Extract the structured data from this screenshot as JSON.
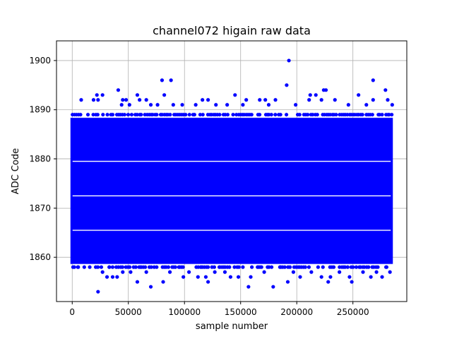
{
  "chart_data": {
    "type": "scatter",
    "title": "channel072 higain raw data",
    "xlabel": "sample number",
    "ylabel": "ADC Code",
    "xlim": [
      -14000,
      298000
    ],
    "ylim": [
      1851,
      1904
    ],
    "xticks": [
      0,
      50000,
      100000,
      150000,
      200000,
      250000
    ],
    "xtick_labels": [
      "0",
      "50000",
      "100000",
      "150000",
      "200000",
      "250000"
    ],
    "yticks": [
      1860,
      1870,
      1880,
      1890,
      1900
    ],
    "ytick_labels": [
      "1860",
      "1870",
      "1880",
      "1890",
      "1900"
    ],
    "grid": true,
    "marker_color": "#0000ff",
    "x_range": [
      0,
      284000
    ],
    "dense_band": [
      1859,
      1888
    ],
    "empty_levels": [
      1865.5,
      1872.5,
      1879.5
    ],
    "series": [
      {
        "points": [
          [
            193000,
            1900
          ],
          [
            80000,
            1896
          ],
          [
            88000,
            1896
          ],
          [
            268000,
            1896
          ],
          [
            191000,
            1895
          ],
          [
            41000,
            1894
          ],
          [
            224000,
            1894
          ],
          [
            226000,
            1894
          ],
          [
            279000,
            1894
          ],
          [
            145000,
            1893
          ],
          [
            58000,
            1893
          ],
          [
            82000,
            1893
          ],
          [
            212000,
            1893
          ],
          [
            217000,
            1893
          ],
          [
            255000,
            1893
          ],
          [
            22000,
            1893
          ],
          [
            27000,
            1893
          ],
          [
            8000,
            1892
          ],
          [
            19000,
            1892
          ],
          [
            23000,
            1892
          ],
          [
            45000,
            1892
          ],
          [
            48000,
            1892
          ],
          [
            60000,
            1892
          ],
          [
            66000,
            1892
          ],
          [
            116000,
            1892
          ],
          [
            121000,
            1892
          ],
          [
            155000,
            1892
          ],
          [
            167000,
            1892
          ],
          [
            172000,
            1892
          ],
          [
            181000,
            1892
          ],
          [
            211000,
            1892
          ],
          [
            222000,
            1892
          ],
          [
            234000,
            1892
          ],
          [
            268000,
            1892
          ],
          [
            281000,
            1892
          ],
          [
            44000,
            1891
          ],
          [
            51000,
            1891
          ],
          [
            70000,
            1891
          ],
          [
            76000,
            1891
          ],
          [
            90000,
            1891
          ],
          [
            98000,
            1891
          ],
          [
            110000,
            1891
          ],
          [
            128000,
            1891
          ],
          [
            138000,
            1891
          ],
          [
            152000,
            1891
          ],
          [
            175000,
            1891
          ],
          [
            199000,
            1891
          ],
          [
            246000,
            1891
          ],
          [
            262000,
            1891
          ],
          [
            285000,
            1891
          ],
          [
            23000,
            1853
          ],
          [
            70000,
            1854
          ],
          [
            157000,
            1854
          ],
          [
            179000,
            1854
          ],
          [
            58000,
            1855
          ],
          [
            81000,
            1855
          ],
          [
            121000,
            1855
          ],
          [
            192000,
            1855
          ],
          [
            228000,
            1855
          ],
          [
            249000,
            1855
          ],
          [
            31000,
            1856
          ],
          [
            36000,
            1856
          ],
          [
            40000,
            1856
          ],
          [
            99000,
            1856
          ],
          [
            112000,
            1856
          ],
          [
            119000,
            1856
          ],
          [
            141000,
            1856
          ],
          [
            148000,
            1856
          ],
          [
            159000,
            1856
          ],
          [
            203000,
            1856
          ],
          [
            222000,
            1856
          ],
          [
            230000,
            1856
          ],
          [
            247000,
            1856
          ],
          [
            266000,
            1856
          ],
          [
            276000,
            1856
          ],
          [
            27000,
            1857
          ],
          [
            45000,
            1857
          ],
          [
            52000,
            1857
          ],
          [
            66000,
            1857
          ],
          [
            87000,
            1857
          ],
          [
            104000,
            1857
          ],
          [
            127000,
            1857
          ],
          [
            136000,
            1857
          ],
          [
            171000,
            1857
          ],
          [
            197000,
            1857
          ],
          [
            213000,
            1857
          ],
          [
            238000,
            1857
          ],
          [
            259000,
            1857
          ],
          [
            271000,
            1857
          ],
          [
            283000,
            1857
          ],
          [
            5000,
            1858
          ],
          [
            33000,
            1858
          ],
          [
            61000,
            1858
          ],
          [
            73000,
            1858
          ],
          [
            95000,
            1858
          ],
          [
            115000,
            1858
          ],
          [
            131000,
            1858
          ],
          [
            166000,
            1858
          ],
          [
            185000,
            1858
          ],
          [
            206000,
            1858
          ],
          [
            219000,
            1858
          ],
          [
            243000,
            1858
          ],
          [
            253000,
            1858
          ],
          [
            280000,
            1858
          ]
        ]
      }
    ]
  }
}
